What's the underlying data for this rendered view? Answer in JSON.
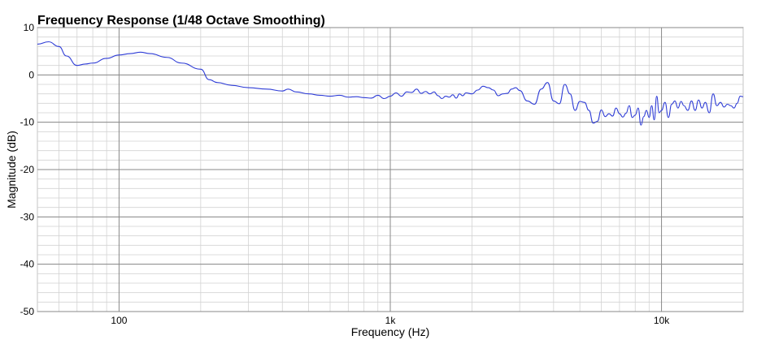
{
  "chart_data": {
    "type": "line",
    "title": "Frequency Response (1/48 Octave Smoothing)",
    "xlabel": "Frequency (Hz)",
    "ylabel": "Magnitude (dB)",
    "xscale": "log",
    "xlim": [
      50,
      20000
    ],
    "ylim": [
      -50,
      10
    ],
    "x_ticks": [
      {
        "value": 100,
        "label": "100"
      },
      {
        "value": 1000,
        "label": "1k"
      },
      {
        "value": 10000,
        "label": "10k"
      }
    ],
    "y_ticks": [
      {
        "value": 10,
        "label": "10"
      },
      {
        "value": 0,
        "label": "0"
      },
      {
        "value": -10,
        "label": "-10"
      },
      {
        "value": -20,
        "label": "-20"
      },
      {
        "value": -30,
        "label": "-30"
      },
      {
        "value": -40,
        "label": "-40"
      },
      {
        "value": -50,
        "label": "-50"
      }
    ],
    "grid": true,
    "line_color": "#2e3cd6",
    "series": [
      {
        "x": [
          50,
          55,
          60,
          64,
          70,
          75,
          80,
          90,
          100,
          110,
          120,
          130,
          150,
          170,
          200,
          215,
          230,
          260,
          300,
          350,
          400,
          420,
          450,
          500,
          550,
          600,
          650,
          700,
          750,
          800,
          850,
          900,
          950,
          1000,
          1050,
          1100,
          1150,
          1200,
          1250,
          1300,
          1350,
          1400,
          1450,
          1500,
          1550,
          1600,
          1650,
          1700,
          1750,
          1800,
          1850,
          1900,
          2000,
          2100,
          2200,
          2300,
          2400,
          2500,
          2600,
          2700,
          2800,
          2900,
          3000,
          3200,
          3400,
          3600,
          3800,
          4000,
          4200,
          4400,
          4600,
          4800,
          5000,
          5200,
          5400,
          5600,
          5800,
          6000,
          6200,
          6400,
          6600,
          6800,
          7000,
          7200,
          7400,
          7600,
          7800,
          8000,
          8200,
          8400,
          8600,
          8800,
          9000,
          9200,
          9400,
          9600,
          9800,
          10000,
          10300,
          10600,
          10900,
          11200,
          11500,
          11800,
          12100,
          12500,
          12900,
          13300,
          13700,
          14100,
          14500,
          15000,
          15500,
          16000,
          16500,
          17000,
          17500,
          18000,
          18500,
          19000,
          19500,
          20000
        ],
        "y": [
          6.5,
          7.0,
          6.0,
          4.0,
          2.0,
          2.3,
          2.5,
          3.5,
          4.2,
          4.5,
          4.8,
          4.5,
          3.7,
          2.5,
          1.2,
          -1.0,
          -1.6,
          -2.2,
          -2.7,
          -3.0,
          -3.4,
          -3.0,
          -3.6,
          -4.0,
          -4.3,
          -4.5,
          -4.3,
          -4.7,
          -4.6,
          -4.8,
          -4.9,
          -4.3,
          -5.0,
          -4.5,
          -3.8,
          -4.5,
          -3.6,
          -3.7,
          -3.0,
          -3.9,
          -3.5,
          -4.0,
          -3.6,
          -4.4,
          -5.0,
          -4.5,
          -4.7,
          -4.2,
          -4.9,
          -4.0,
          -4.4,
          -3.8,
          -4.0,
          -3.2,
          -2.4,
          -2.7,
          -3.2,
          -4.4,
          -4.0,
          -3.9,
          -3.0,
          -2.7,
          -3.3,
          -5.5,
          -6.2,
          -3.0,
          -1.6,
          -5.5,
          -6.1,
          -2.0,
          -4.0,
          -7.5,
          -5.6,
          -5.8,
          -7.5,
          -10.2,
          -9.8,
          -7.4,
          -8.8,
          -8.2,
          -8.7,
          -7.0,
          -8.2,
          -8.9,
          -8.1,
          -6.5,
          -9.0,
          -8.5,
          -7.0,
          -10.6,
          -8.8,
          -7.5,
          -9.0,
          -6.5,
          -9.5,
          -4.5,
          -8.0,
          -7.5,
          -5.8,
          -9.0,
          -6.2,
          -5.5,
          -7.0,
          -5.6,
          -6.5,
          -7.5,
          -5.5,
          -7.5,
          -5.3,
          -7.0,
          -5.8,
          -8.0,
          -4.0,
          -6.5,
          -5.8,
          -6.8,
          -6.2,
          -6.5,
          -7.0,
          -6.0,
          -4.5,
          -4.6
        ]
      }
    ]
  }
}
